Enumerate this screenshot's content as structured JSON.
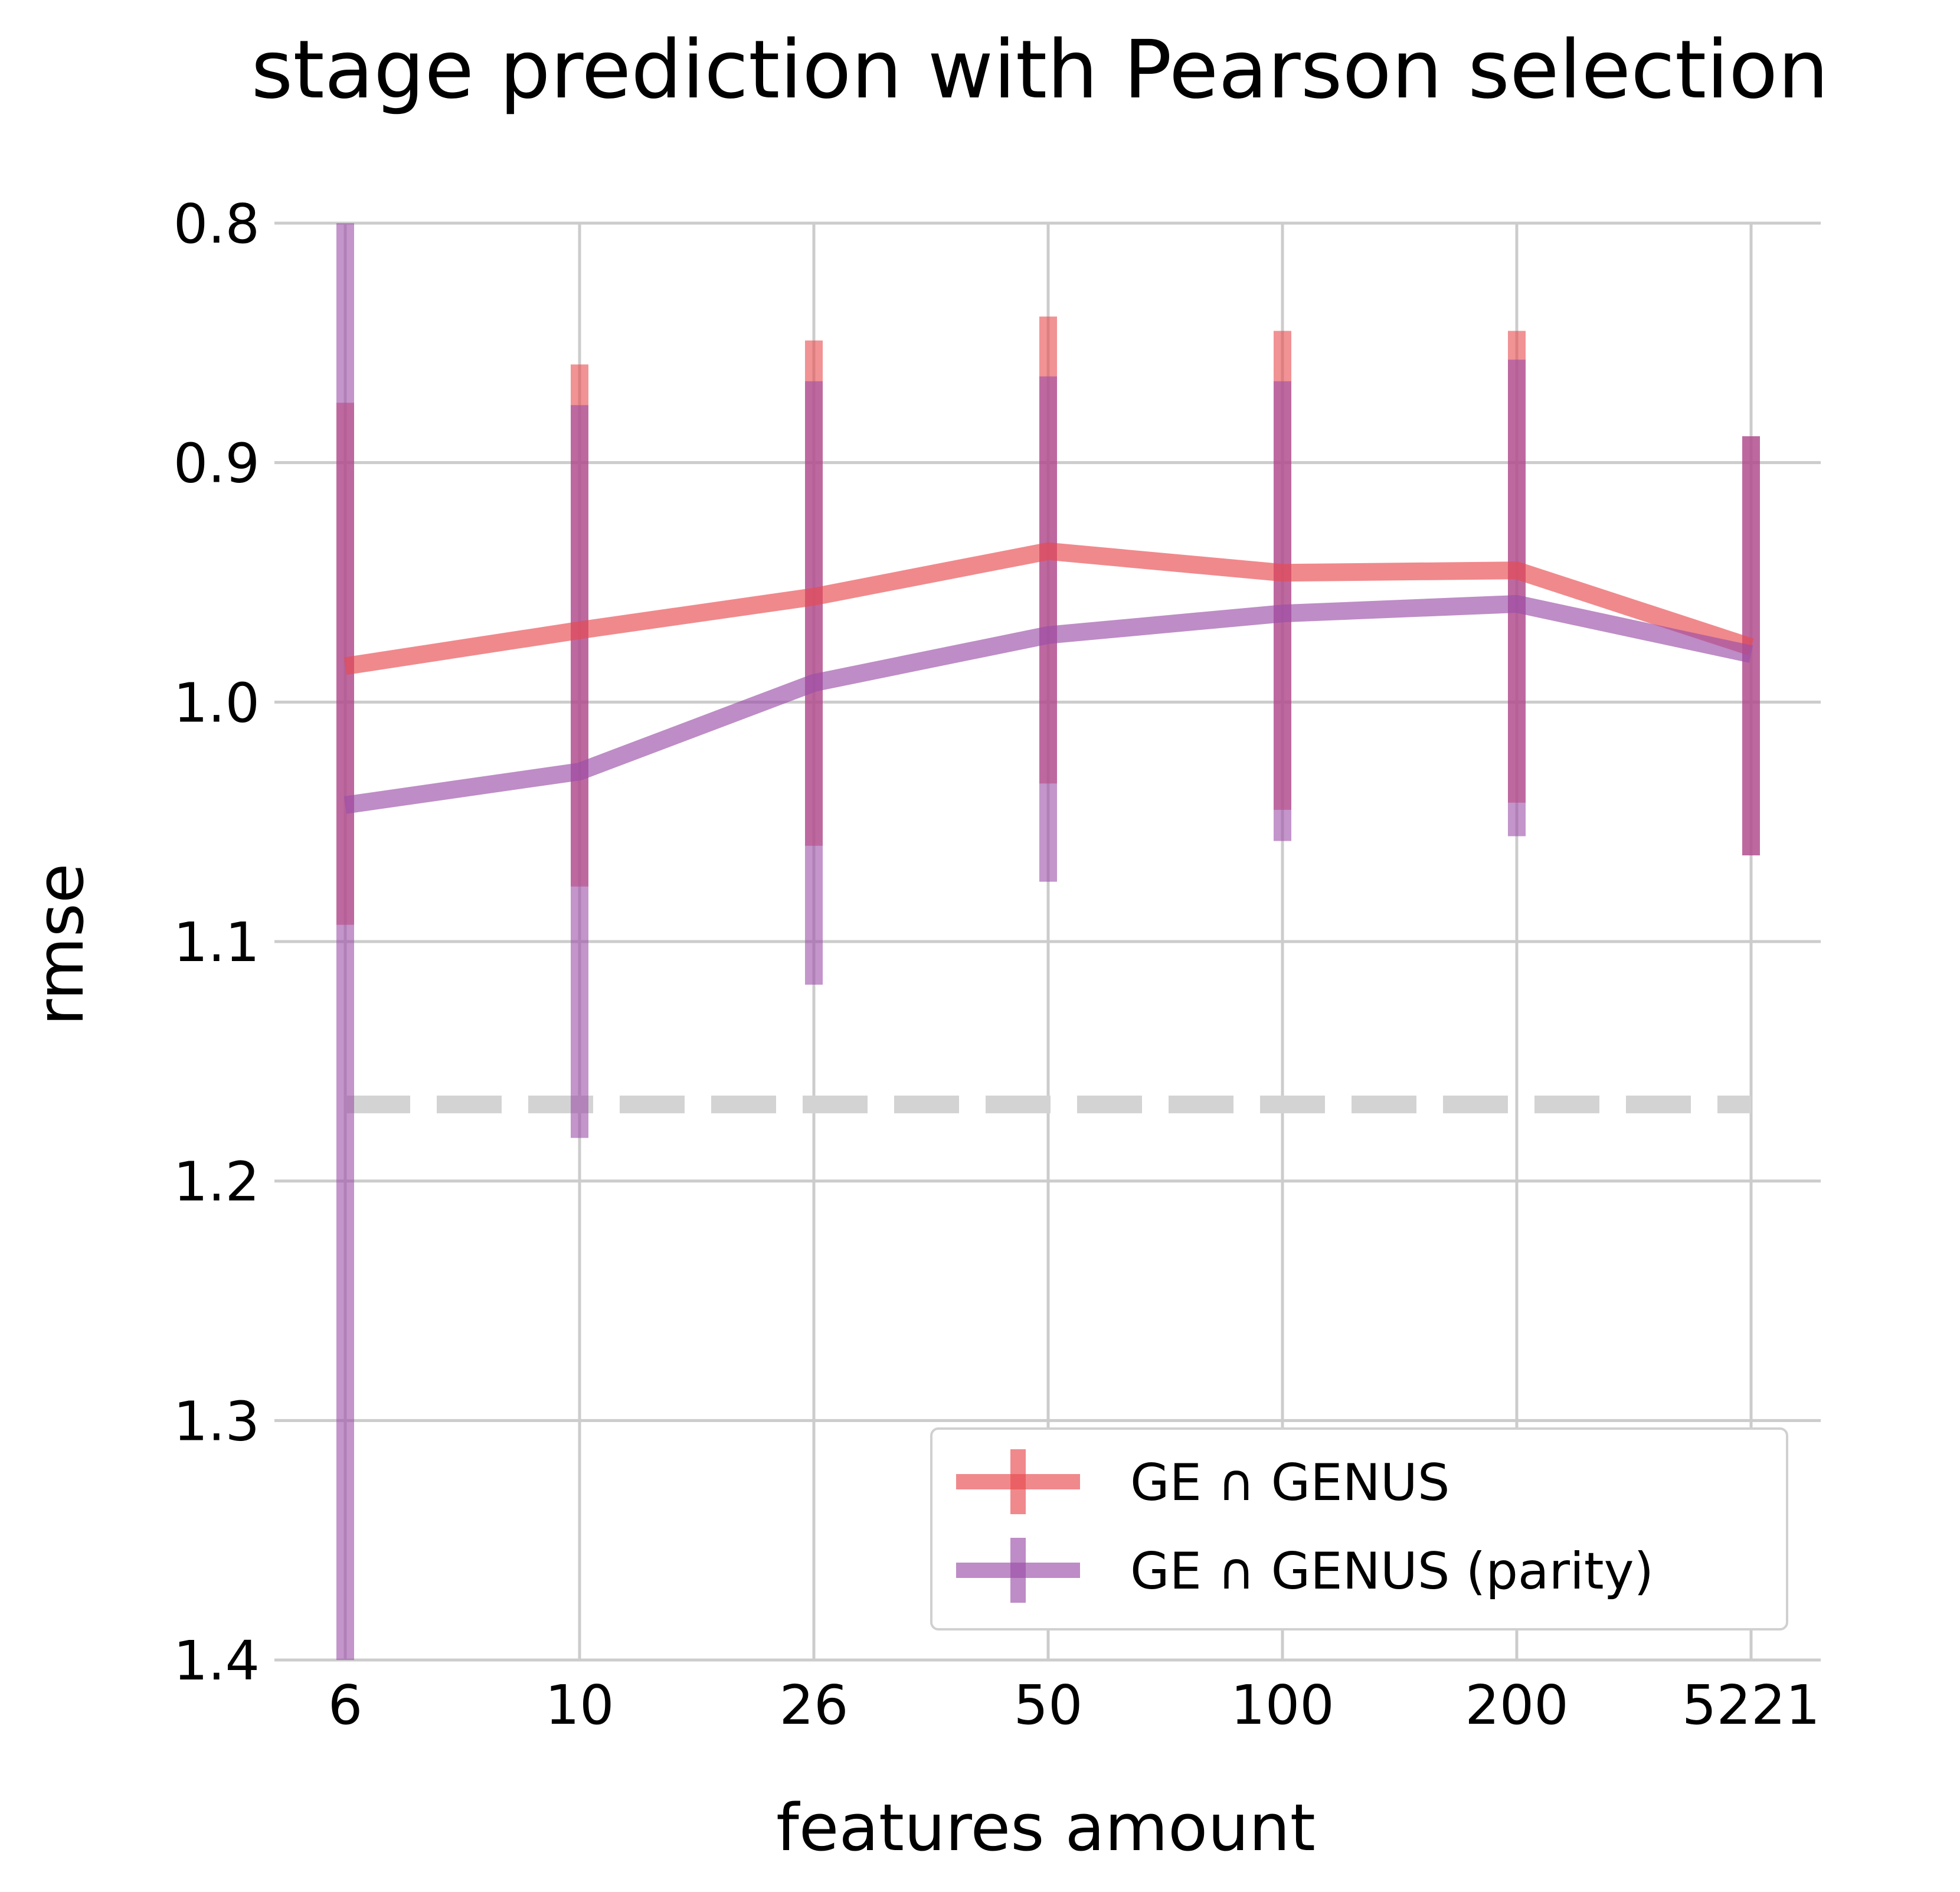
{
  "chart_data": {
    "type": "line",
    "title": "stage prediction with Pearson selection",
    "xlabel": "features amount",
    "ylabel": "rmse",
    "categories": [
      "6",
      "10",
      "26",
      "50",
      "100",
      "200",
      "5221"
    ],
    "y_ticks": [
      "0.8",
      "0.9",
      "1.0",
      "1.1",
      "1.2",
      "1.3",
      "1.4"
    ],
    "ylim": [
      0.8,
      1.4
    ],
    "y_inverted": true,
    "grid": true,
    "legend_position": "bottom-right",
    "reference_line": {
      "y": 1.168,
      "style": "dashed",
      "color": "#d3d3d3"
    },
    "series": [
      {
        "name": "GE ∩ GENUS",
        "color": "#e8494f",
        "values": [
          0.985,
          0.97,
          0.956,
          0.937,
          0.946,
          0.945,
          0.977
        ],
        "err_low": [
          0.875,
          0.859,
          0.849,
          0.839,
          0.845,
          0.845,
          0.889
        ],
        "err_high": [
          1.093,
          1.077,
          1.06,
          1.034,
          1.045,
          1.042,
          1.064
        ]
      },
      {
        "name": "GE ∩ GENUS (parity)",
        "color": "#9b4fa8",
        "values": [
          1.043,
          1.029,
          0.992,
          0.972,
          0.963,
          0.959,
          0.98
        ],
        "err_low": [
          0.8,
          0.876,
          0.866,
          0.864,
          0.866,
          0.857,
          0.889
        ],
        "err_high": [
          1.4,
          1.182,
          1.118,
          1.075,
          1.058,
          1.056,
          1.064
        ]
      }
    ]
  }
}
